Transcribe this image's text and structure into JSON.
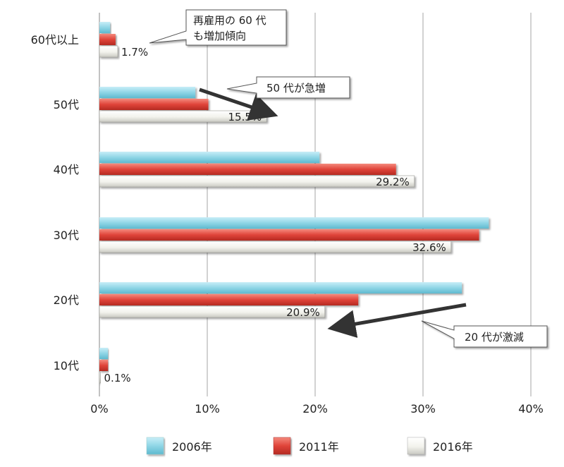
{
  "chart_data": {
    "type": "bar",
    "orientation": "horizontal",
    "categories": [
      "60代以上",
      "50代",
      "40代",
      "30代",
      "20代",
      "10代"
    ],
    "series": [
      {
        "name": "2006年",
        "color": "#8fd6e6",
        "values": [
          1.0,
          8.9,
          20.4,
          36.1,
          33.6,
          0.8
        ]
      },
      {
        "name": "2011年",
        "color": "#e0443a",
        "values": [
          1.5,
          10.1,
          27.5,
          35.2,
          24.0,
          0.8
        ]
      },
      {
        "name": "2016年",
        "color": "#f0f0ea",
        "values": [
          1.7,
          15.5,
          29.2,
          32.6,
          20.9,
          0.1
        ]
      }
    ],
    "data_labels": [
      "1.7%",
      "15.5%",
      "29.2%",
      "32.6%",
      "20.9%",
      "0.1%"
    ],
    "xlim": [
      0,
      40
    ],
    "ticks": [
      {
        "value": 0,
        "label": "0%"
      },
      {
        "value": 10,
        "label": "10%"
      },
      {
        "value": 20,
        "label": "20%"
      },
      {
        "value": 30,
        "label": "30%"
      },
      {
        "value": 40,
        "label": "40%"
      }
    ],
    "grid": true,
    "legend_position": "bottom",
    "annotations": [
      {
        "lines": [
          "再雇用の 60 代",
          "も増加傾向"
        ]
      },
      {
        "lines": [
          "50 代が急増"
        ]
      },
      {
        "lines": [
          "20 代が激減"
        ]
      }
    ]
  }
}
